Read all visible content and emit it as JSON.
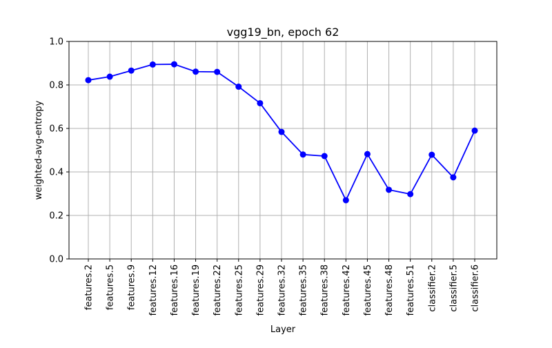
{
  "chart_data": {
    "type": "line",
    "title": "vgg19_bn, epoch 62",
    "xlabel": "Layer",
    "ylabel": "weighted-avg-entropy",
    "ylim": [
      0.0,
      1.0
    ],
    "yticks": [
      "0.0",
      "0.2",
      "0.4",
      "0.6",
      "0.8",
      "1.0"
    ],
    "grid": true,
    "categories": [
      "features.2",
      "features.5",
      "features.9",
      "features.12",
      "features.16",
      "features.19",
      "features.22",
      "features.25",
      "features.29",
      "features.32",
      "features.35",
      "features.38",
      "features.42",
      "features.45",
      "features.48",
      "features.51",
      "classifier.2",
      "classifier.5",
      "classifier.6"
    ],
    "series": [
      {
        "color": "#0000ff",
        "marker": "circle",
        "values": [
          0.822,
          0.838,
          0.866,
          0.894,
          0.895,
          0.861,
          0.86,
          0.792,
          0.716,
          0.584,
          0.48,
          0.473,
          0.27,
          0.482,
          0.318,
          0.298,
          0.479,
          0.375,
          0.59
        ]
      }
    ]
  }
}
